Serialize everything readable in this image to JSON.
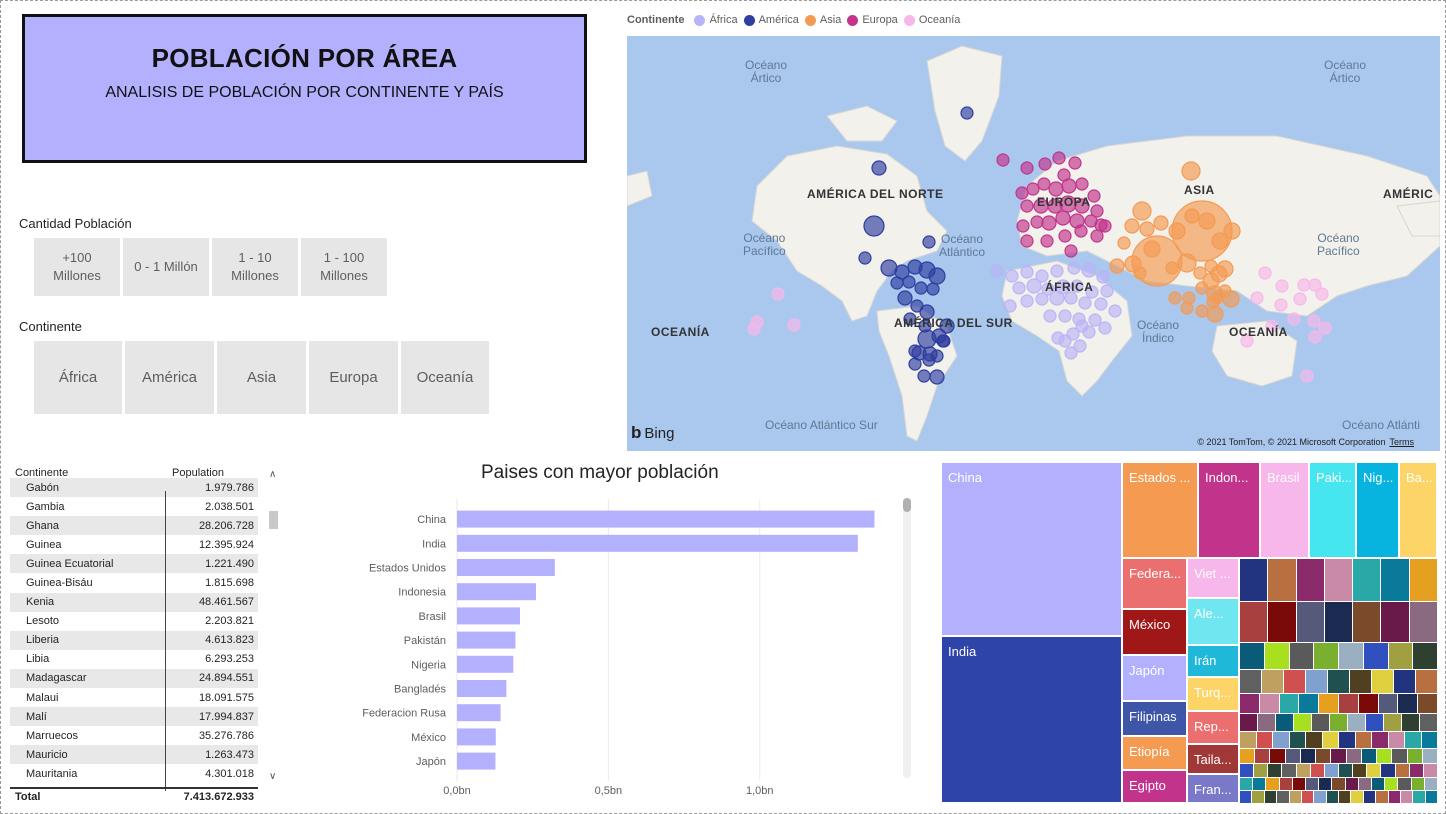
{
  "header": {
    "title": "POBLACIÓN POR ÁREA",
    "subtitle": "ANALISIS DE POBLACIÓN POR CONTINENTE Y PAÍS"
  },
  "slicers": {
    "population": {
      "label": "Cantidad Población",
      "options": [
        "+100\nMillones",
        "0 - 1 Millón",
        "1 - 10\nMillones",
        "1 - 100\nMillones"
      ]
    },
    "continent": {
      "label": "Continente",
      "options": [
        "África",
        "América",
        "Asia",
        "Europa",
        "Oceanía"
      ]
    }
  },
  "map": {
    "legend_title": "Continente",
    "legend": [
      {
        "name": "África",
        "color": "#b9b4f7"
      },
      {
        "name": "América",
        "color": "#2e3ea0"
      },
      {
        "name": "Asia",
        "color": "#f59a51"
      },
      {
        "name": "Europa",
        "color": "#c2338c"
      },
      {
        "name": "Oceanía",
        "color": "#f7b7ea"
      }
    ],
    "labels": {
      "arctic_l": "Océano\nÁrtico",
      "arctic_r": "Océano\nÁrtico",
      "north_america": "AMÉRICA DEL NORTE",
      "asia": "ASIA",
      "america_r": "AMÉRIC",
      "pacific_l": "Océano\nPacífico",
      "atlantic": "Océano\nAtlántico",
      "pacific_r": "Océano\nPacífico",
      "africa": "ÁFRICA",
      "europa": "EUROPA",
      "oceania_l": "OCEANÍA",
      "south_america": "AMÉRICA DEL SUR",
      "indian": "Océano\nÍndico",
      "oceania_r": "OCEANÍA",
      "atlantic_south": "Océano Atlántico Sur",
      "atlantic_south_r": "Océano Atlánti"
    },
    "provider": "Bing",
    "copyright": "© 2021 TomTom, © 2021 Microsoft Corporation",
    "terms": "Terms"
  },
  "table": {
    "headers": [
      "Continente",
      "Population"
    ],
    "rows": [
      [
        "Gabón",
        "1.979.786"
      ],
      [
        "Gambia",
        "2.038.501"
      ],
      [
        "Ghana",
        "28.206.728"
      ],
      [
        "Guinea",
        "12.395.924"
      ],
      [
        "Guinea Ecuatorial",
        "1.221.490"
      ],
      [
        "Guinea-Bisáu",
        "1.815.698"
      ],
      [
        "Kenia",
        "48.461.567"
      ],
      [
        "Lesoto",
        "2.203.821"
      ],
      [
        "Liberia",
        "4.613.823"
      ],
      [
        "Libia",
        "6.293.253"
      ],
      [
        "Madagascar",
        "24.894.551"
      ],
      [
        "Malaui",
        "18.091.575"
      ],
      [
        "Malí",
        "17.994.837"
      ],
      [
        "Marruecos",
        "35.276.786"
      ],
      [
        "Mauricio",
        "1.263.473"
      ],
      [
        "Mauritania",
        "4.301.018"
      ]
    ],
    "total_label": "Total",
    "total_value": "7.413.672.933"
  },
  "chart_data": [
    {
      "type": "bar",
      "title": "Paises con mayor población",
      "orientation": "horizontal",
      "categories": [
        "China",
        "India",
        "Estados Unidos",
        "Indonesia",
        "Brasil",
        "Pakistán",
        "Nigeria",
        "Bangladés",
        "Federacion Rusa",
        "México",
        "Japón"
      ],
      "values": [
        1.379,
        1.324,
        0.323,
        0.261,
        0.208,
        0.193,
        0.186,
        0.163,
        0.144,
        0.128,
        0.127
      ],
      "unit": "bn",
      "xlim": [
        0,
        1.45
      ],
      "xticks": [
        {
          "v": 0,
          "label": "0,0bn"
        },
        {
          "v": 0.5,
          "label": "0,5bn"
        },
        {
          "v": 1.0,
          "label": "1,0bn"
        }
      ],
      "color": "#b3b0fe",
      "grid": true
    },
    {
      "type": "treemap",
      "labeled_tiles": [
        {
          "name": "China",
          "color": "#b3b0fe"
        },
        {
          "name": "India",
          "color": "#2e44a8"
        },
        {
          "name": "Estados ...",
          "color": "#f59a51"
        },
        {
          "name": "Indon...",
          "color": "#c2338c"
        },
        {
          "name": "Brasil",
          "color": "#f7b7ea"
        },
        {
          "name": "Paki...",
          "color": "#45e6f0"
        },
        {
          "name": "Nig...",
          "color": "#07b4e0"
        },
        {
          "name": "Ba...",
          "color": "#fdd468"
        },
        {
          "name": "Federa...",
          "color": "#ec6f6f"
        },
        {
          "name": "Viet ...",
          "color": "#f7b7ea"
        },
        {
          "name": "México",
          "color": "#a01717"
        },
        {
          "name": "Ale...",
          "color": "#6fe6f0"
        },
        {
          "name": "Japón",
          "color": "#b3b0fe"
        },
        {
          "name": "Irán",
          "color": "#1fb8d8"
        },
        {
          "name": "Turq...",
          "color": "#fdd468"
        },
        {
          "name": "Filipinas",
          "color": "#3e56a8"
        },
        {
          "name": "Rep...",
          "color": "#ec6f6f"
        },
        {
          "name": "Etiopía",
          "color": "#f59a51"
        },
        {
          "name": "Taila...",
          "color": "#a03838"
        },
        {
          "name": "Egipto",
          "color": "#c2338c"
        },
        {
          "name": "Fran...",
          "color": "#7a78c8"
        }
      ]
    }
  ]
}
